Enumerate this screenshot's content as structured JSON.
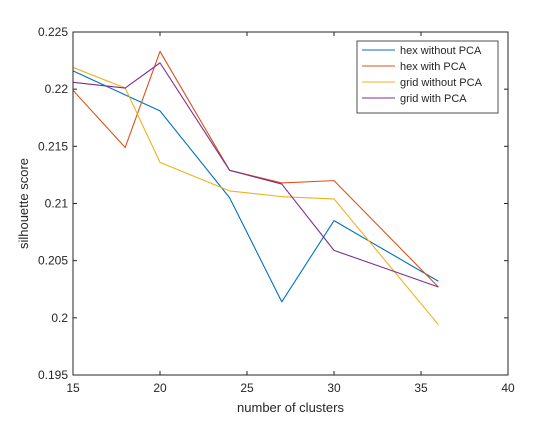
{
  "chart_data": {
    "type": "line",
    "title": "",
    "xlabel": "number of clusters",
    "ylabel": "silhouette score",
    "xlim": [
      15,
      40
    ],
    "ylim": [
      0.195,
      0.225
    ],
    "xticks": [
      "15",
      "20",
      "25",
      "30",
      "35",
      "40"
    ],
    "yticks": [
      "0.195",
      "0.2",
      "0.205",
      "0.21",
      "0.215",
      "0.22",
      "0.225"
    ],
    "grid": false,
    "legend_position": "top-right",
    "series": [
      {
        "name": "hex without PCA",
        "color": "#0072BD",
        "x": [
          15,
          18,
          20,
          24,
          27,
          30,
          36
        ],
        "values": [
          0.2216,
          0.2195,
          0.2181,
          0.2105,
          0.2014,
          0.2085,
          0.2032
        ]
      },
      {
        "name": "hex with PCA",
        "color": "#D95319",
        "x": [
          15,
          18,
          20,
          24,
          27,
          30,
          36
        ],
        "values": [
          0.2199,
          0.2149,
          0.2233,
          0.2129,
          0.2118,
          0.212,
          0.2027
        ]
      },
      {
        "name": "grid without PCA",
        "color": "#EDB120",
        "x": [
          15,
          18,
          20,
          24,
          27,
          30,
          36
        ],
        "values": [
          0.2219,
          0.2201,
          0.2136,
          0.2111,
          0.2106,
          0.2104,
          0.1994
        ]
      },
      {
        "name": "grid with PCA",
        "color": "#7E2F8E",
        "x": [
          15,
          18,
          20,
          24,
          27,
          30,
          36
        ],
        "values": [
          0.2206,
          0.2201,
          0.2223,
          0.2129,
          0.2117,
          0.2059,
          0.2027
        ]
      }
    ]
  }
}
